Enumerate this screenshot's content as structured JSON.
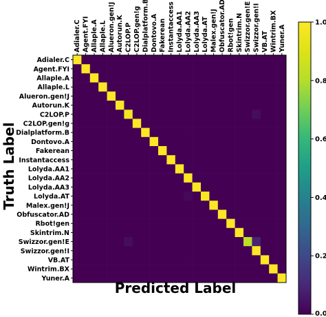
{
  "chart_data": {
    "type": "heatmap",
    "xlabel": "Predicted Label",
    "ylabel": "Truth Label",
    "labels": [
      "Adialer.C",
      "Agent.FYI",
      "Allaple.A",
      "Allaple.L",
      "Alueron.gen!J",
      "Autorun.K",
      "C2LOP.P",
      "C2LOP.gen!g",
      "Dialplatform.B",
      "Dontovo.A",
      "Fakerean",
      "Instantaccess",
      "Lolyda.AA1",
      "Lolyda.AA2",
      "Lolyda.AA3",
      "Lolyda.AT",
      "Malex.gen!J",
      "Obfuscator.AD",
      "Rbot!gen",
      "Skintrim.N",
      "Swizzor.gen!E",
      "Swizzor.gen!I",
      "VB.AT",
      "Wintrim.BX",
      "Yuner.A"
    ],
    "matrix": [
      [
        1.0,
        0,
        0,
        0,
        0,
        0,
        0,
        0,
        0,
        0,
        0,
        0,
        0,
        0,
        0,
        0,
        0,
        0,
        0,
        0,
        0,
        0,
        0,
        0,
        0
      ],
      [
        0,
        1.0,
        0,
        0,
        0,
        0,
        0,
        0,
        0,
        0,
        0,
        0,
        0,
        0,
        0,
        0,
        0,
        0,
        0,
        0,
        0,
        0,
        0,
        0,
        0
      ],
      [
        0,
        0,
        1.0,
        0,
        0,
        0,
        0,
        0,
        0,
        0,
        0,
        0,
        0,
        0,
        0,
        0,
        0,
        0,
        0,
        0,
        0,
        0,
        0,
        0,
        0
      ],
      [
        0,
        0,
        0,
        1.0,
        0,
        0,
        0,
        0,
        0,
        0,
        0,
        0,
        0,
        0,
        0,
        0,
        0,
        0,
        0,
        0,
        0,
        0,
        0,
        0,
        0
      ],
      [
        0,
        0,
        0,
        0,
        1.0,
        0,
        0,
        0,
        0,
        0,
        0,
        0,
        0,
        0,
        0,
        0,
        0,
        0,
        0,
        0,
        0,
        0,
        0,
        0,
        0
      ],
      [
        0,
        0,
        0,
        0,
        0,
        1.0,
        0,
        0,
        0,
        0,
        0,
        0,
        0,
        0,
        0,
        0,
        0,
        0,
        0,
        0,
        0,
        0,
        0,
        0,
        0
      ],
      [
        0,
        0,
        0,
        0,
        0,
        0,
        0.97,
        0,
        0,
        0,
        0,
        0,
        0,
        0,
        0,
        0,
        0,
        0,
        0,
        0,
        0,
        0.03,
        0,
        0,
        0
      ],
      [
        0,
        0,
        0,
        0,
        0,
        0,
        0,
        1.0,
        0,
        0,
        0,
        0,
        0,
        0,
        0,
        0,
        0,
        0,
        0,
        0,
        0,
        0,
        0,
        0,
        0
      ],
      [
        0,
        0,
        0,
        0,
        0,
        0,
        0,
        0,
        1.0,
        0,
        0,
        0,
        0,
        0,
        0,
        0,
        0,
        0,
        0,
        0,
        0,
        0,
        0,
        0,
        0
      ],
      [
        0,
        0,
        0,
        0,
        0,
        0,
        0,
        0,
        0,
        1.0,
        0,
        0,
        0,
        0,
        0,
        0,
        0,
        0,
        0,
        0,
        0,
        0,
        0,
        0,
        0
      ],
      [
        0,
        0,
        0,
        0,
        0,
        0,
        0,
        0,
        0,
        0,
        1.0,
        0,
        0,
        0,
        0,
        0,
        0,
        0,
        0,
        0,
        0,
        0,
        0,
        0,
        0
      ],
      [
        0,
        0,
        0,
        0,
        0,
        0,
        0,
        0,
        0,
        0,
        0,
        1.0,
        0,
        0,
        0,
        0,
        0,
        0,
        0,
        0,
        0,
        0,
        0,
        0,
        0
      ],
      [
        0,
        0,
        0,
        0,
        0,
        0,
        0,
        0,
        0,
        0,
        0,
        0,
        1.0,
        0,
        0,
        0,
        0,
        0,
        0,
        0,
        0,
        0,
        0,
        0,
        0
      ],
      [
        0,
        0,
        0,
        0,
        0,
        0,
        0,
        0,
        0,
        0,
        0,
        0,
        0,
        1.0,
        0,
        0,
        0,
        0,
        0,
        0,
        0,
        0,
        0,
        0,
        0
      ],
      [
        0,
        0,
        0,
        0,
        0,
        0,
        0,
        0,
        0,
        0,
        0,
        0,
        0,
        0,
        1.0,
        0,
        0,
        0,
        0,
        0,
        0,
        0,
        0,
        0,
        0
      ],
      [
        0,
        0,
        0,
        0,
        0,
        0,
        0,
        0,
        0,
        0,
        0,
        0,
        0,
        0.02,
        0,
        0.98,
        0,
        0,
        0,
        0,
        0,
        0,
        0,
        0,
        0
      ],
      [
        0,
        0,
        0,
        0,
        0,
        0,
        0,
        0,
        0,
        0,
        0,
        0,
        0,
        0,
        0,
        0,
        1.0,
        0,
        0,
        0,
        0,
        0,
        0,
        0,
        0
      ],
      [
        0,
        0,
        0,
        0,
        0,
        0,
        0,
        0,
        0,
        0,
        0,
        0,
        0,
        0,
        0,
        0,
        0,
        1.0,
        0,
        0,
        0,
        0,
        0,
        0,
        0
      ],
      [
        0,
        0,
        0,
        0,
        0,
        0,
        0,
        0,
        0,
        0,
        0,
        0,
        0,
        0,
        0,
        0,
        0,
        0,
        1.0,
        0,
        0,
        0,
        0,
        0,
        0
      ],
      [
        0,
        0,
        0,
        0,
        0,
        0,
        0,
        0,
        0,
        0,
        0,
        0,
        0,
        0,
        0,
        0,
        0,
        0,
        0,
        1.0,
        0,
        0,
        0,
        0,
        0
      ],
      [
        0,
        0,
        0,
        0,
        0,
        0,
        0.03,
        0,
        0,
        0,
        0,
        0,
        0,
        0,
        0,
        0,
        0,
        0,
        0,
        0,
        0.82,
        0.09,
        0,
        0,
        0
      ],
      [
        0,
        0,
        0,
        0,
        0,
        0,
        0,
        0,
        0,
        0,
        0,
        0,
        0,
        0,
        0,
        0,
        0,
        0,
        0,
        0,
        0,
        1.0,
        0,
        0,
        0
      ],
      [
        0,
        0,
        0,
        0,
        0,
        0,
        0,
        0,
        0,
        0,
        0,
        0,
        0,
        0,
        0,
        0,
        0,
        0,
        0,
        0,
        0,
        0,
        1.0,
        0,
        0
      ],
      [
        0,
        0,
        0,
        0,
        0,
        0,
        0,
        0,
        0,
        0,
        0,
        0,
        0,
        0,
        0,
        0,
        0,
        0,
        0,
        0,
        0,
        0,
        0,
        1.0,
        0
      ],
      [
        0,
        0,
        0,
        0,
        0,
        0,
        0,
        0,
        0,
        0,
        0,
        0,
        0,
        0,
        0,
        0,
        0,
        0,
        0,
        0,
        0,
        0,
        0,
        0,
        1.0
      ]
    ],
    "colorbar": {
      "colormap": "viridis",
      "range": [
        0.0,
        1.0
      ],
      "ticks": [
        0.0,
        0.2,
        0.4,
        0.6,
        0.8,
        1.0
      ],
      "tick_labels": [
        "0.0",
        "0.2",
        "0.4",
        "0.6",
        "0.8",
        "1.0"
      ]
    },
    "grid": false,
    "legend": "colorbar-right"
  }
}
